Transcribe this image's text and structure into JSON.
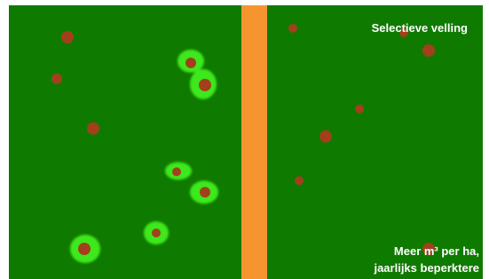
{
  "labels": {
    "top_right": "Selectieve velling",
    "bottom_right_line1": "Meer m³ per ha,",
    "bottom_right_line2": "jaarlijks beperktere"
  }
}
